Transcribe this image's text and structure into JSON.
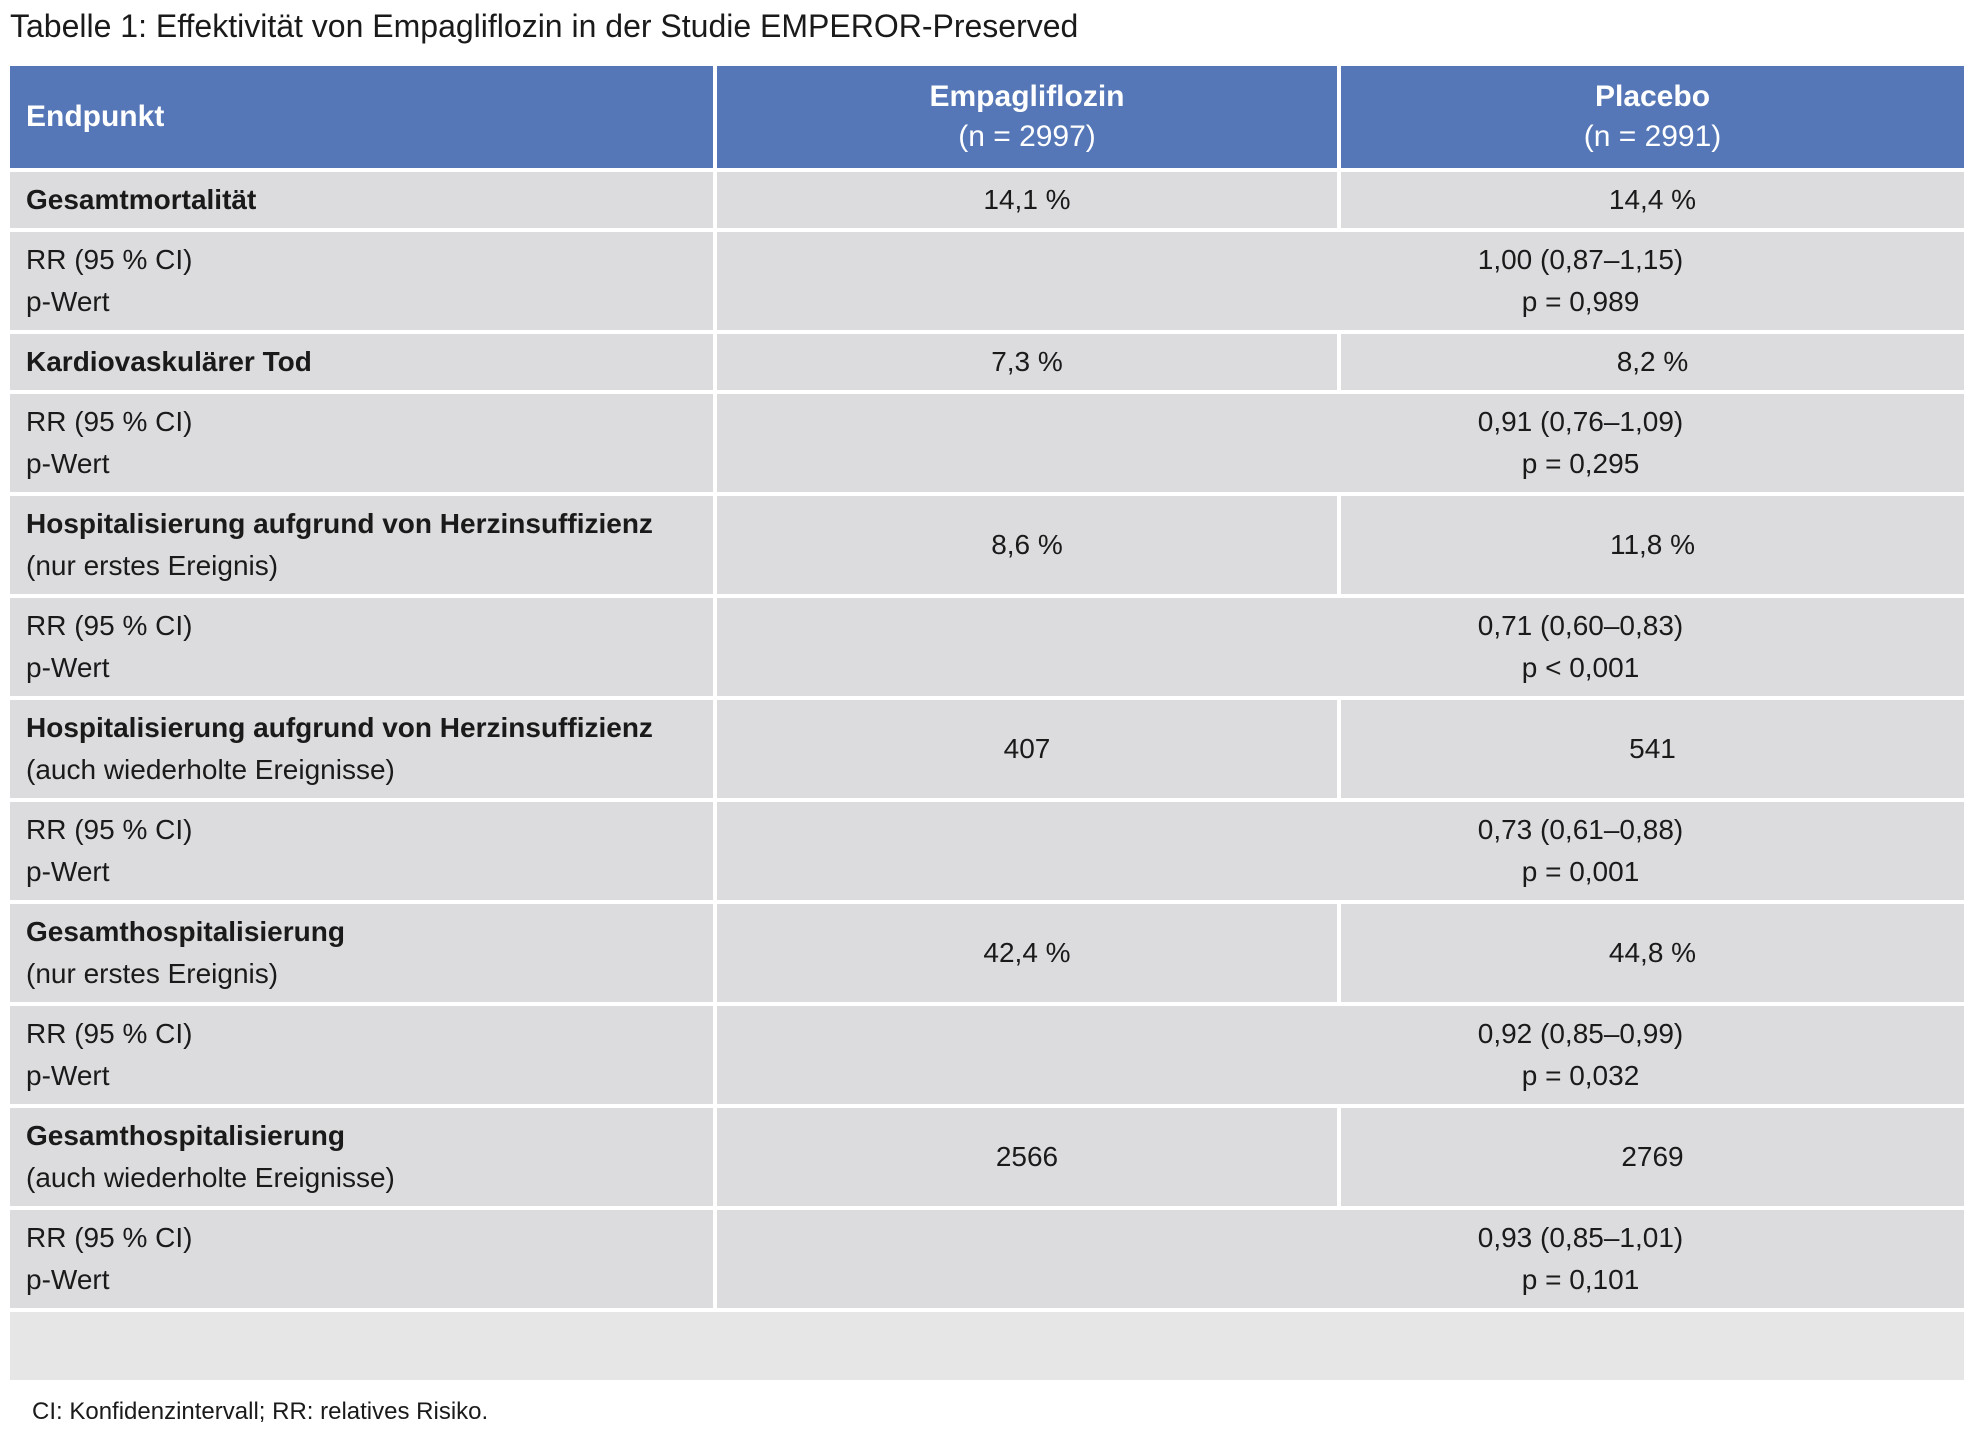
{
  "title": "Tabelle 1: Effektivität von Empagliflozin in der Studie EMPEROR-Preserved",
  "header": {
    "col1": "Endpunkt",
    "col2_name": "Empagliflozin",
    "col2_n": "(n = 2997)",
    "col3_name": "Placebo",
    "col3_n": "(n = 2991)"
  },
  "rows": [
    {
      "name": "Gesamtmortalität",
      "sub": "",
      "empa": "14,1 %",
      "placebo": "14,4 %",
      "rr_label": "RR (95 % CI)",
      "p_label": "p-Wert",
      "rr": "1,00 (0,87–1,15)",
      "p": "p = 0,989"
    },
    {
      "name": "Kardiovaskulärer Tod",
      "sub": "",
      "empa": "7,3 %",
      "placebo": "8,2 %",
      "rr_label": "RR (95 % CI)",
      "p_label": "p-Wert",
      "rr": "0,91 (0,76–1,09)",
      "p": "p = 0,295"
    },
    {
      "name": "Hospitalisierung aufgrund von Herzinsuffizienz",
      "sub": "(nur erstes Ereignis)",
      "empa": "8,6 %",
      "placebo": "11,8 %",
      "rr_label": "RR (95 % CI)",
      "p_label": "p-Wert",
      "rr": "0,71 (0,60–0,83)",
      "p": "p < 0,001"
    },
    {
      "name": "Hospitalisierung aufgrund von Herzinsuffizienz",
      "sub": "(auch wiederholte Ereignisse)",
      "empa": "407",
      "placebo": "541",
      "rr_label": "RR (95 % CI)",
      "p_label": "p-Wert",
      "rr": "0,73 (0,61–0,88)",
      "p": "p = 0,001"
    },
    {
      "name": "Gesamthospitalisierung",
      "sub": "(nur erstes Ereignis)",
      "empa": "42,4 %",
      "placebo": "44,8 %",
      "rr_label": "RR (95 % CI)",
      "p_label": "p-Wert",
      "rr": "0,92 (0,85–0,99)",
      "p": "p = 0,032"
    },
    {
      "name": "Gesamthospitalisierung",
      "sub": "(auch wiederholte Ereignisse)",
      "empa": "2566",
      "placebo": "2769",
      "rr_label": "RR (95 % CI)",
      "p_label": "p-Wert",
      "rr": "0,93 (0,85–1,01)",
      "p": "p = 0,101"
    }
  ],
  "footnote": "CI: Konfidenzintervall; RR: relatives Risiko."
}
